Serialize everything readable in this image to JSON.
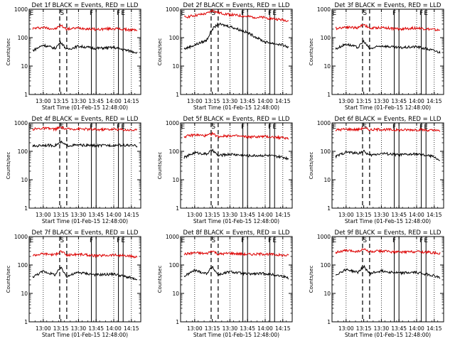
{
  "colors": {
    "events": "#000000",
    "lld": "#dd0000",
    "axes": "#000000"
  },
  "chart_data": [
    {
      "type": "line",
      "title": "Det 1f BLACK = Events, RED = LLD",
      "xlabel": "Start Time (01-Feb-15 12:48:00)",
      "ylabel": "Counts/sec",
      "yscale": "log",
      "ylim": [
        1,
        1000
      ],
      "xlim": [
        "12:48",
        "14:23"
      ],
      "x_ticks": [
        "13:00",
        "13:15",
        "13:30",
        "13:45",
        "14:00",
        "14:15"
      ],
      "y_ticks": [
        "1",
        "10",
        "100",
        "1000"
      ],
      "grid": "dotted vertical at 13:00, 13:30, 14:00, 14:15",
      "dashed_markers": [
        "13:14",
        "13:20"
      ],
      "solid_markers": [
        "13:41",
        "13:45",
        "14:04",
        "14:08"
      ],
      "annotations": [
        {
          "text": "E",
          "x": "12:50"
        },
        {
          "text": "S",
          "x": "13:16"
        },
        {
          "text": "F",
          "x": "13:41"
        },
        {
          "text": "F",
          "x": "14:04"
        },
        {
          "text": "E",
          "x": "14:08"
        }
      ],
      "series": [
        {
          "name": "LLD",
          "color": "red",
          "x": [
            "12:51",
            "13:00",
            "13:10",
            "13:15",
            "13:20",
            "13:30",
            "13:45",
            "14:00",
            "14:15",
            "14:20"
          ],
          "values": [
            210,
            230,
            200,
            270,
            200,
            220,
            195,
            210,
            185,
            190
          ]
        },
        {
          "name": "Events",
          "color": "black",
          "x": [
            "12:51",
            "13:00",
            "13:10",
            "13:15",
            "13:20",
            "13:30",
            "13:45",
            "14:00",
            "14:15",
            "14:20"
          ],
          "values": [
            35,
            55,
            42,
            70,
            38,
            50,
            42,
            45,
            33,
            30
          ]
        }
      ]
    },
    {
      "type": "line",
      "title": "Det 2f BLACK = Events, RED = LLD",
      "xlabel": "Start Time (01-Feb-15 12:48:00)",
      "ylabel": "Counts/sec",
      "yscale": "log",
      "ylim": [
        1,
        1000
      ],
      "xlim": [
        "12:48",
        "14:23"
      ],
      "x_ticks": [
        "13:00",
        "13:15",
        "13:30",
        "13:45",
        "14:00",
        "14:15"
      ],
      "y_ticks": [
        "1",
        "10",
        "100",
        "1000"
      ],
      "grid": "dotted vertical at 13:00, 13:30, 14:00, 14:15",
      "dashed_markers": [
        "13:14",
        "13:20"
      ],
      "solid_markers": [
        "13:41",
        "13:45",
        "14:04",
        "14:08"
      ],
      "annotations": [
        {
          "text": "E",
          "x": "12:50"
        },
        {
          "text": "S",
          "x": "13:16"
        },
        {
          "text": "F",
          "x": "13:41"
        },
        {
          "text": "F",
          "x": "14:04"
        },
        {
          "text": "E",
          "x": "14:08"
        }
      ],
      "series": [
        {
          "name": "LLD",
          "color": "red",
          "x": [
            "12:51",
            "13:00",
            "13:10",
            "13:15",
            "13:20",
            "13:30",
            "13:45",
            "14:00",
            "14:15",
            "14:20"
          ],
          "values": [
            520,
            600,
            700,
            900,
            750,
            650,
            550,
            500,
            420,
            400
          ]
        },
        {
          "name": "Events",
          "color": "black",
          "x": [
            "12:51",
            "13:00",
            "13:10",
            "13:15",
            "13:20",
            "13:30",
            "13:45",
            "14:00",
            "14:15",
            "14:20"
          ],
          "values": [
            40,
            55,
            80,
            200,
            300,
            250,
            150,
            70,
            55,
            45
          ]
        }
      ]
    },
    {
      "type": "line",
      "title": "Det 3f BLACK = Events, RED = LLD",
      "xlabel": "Start Time (01-Feb-15 12:48:00)",
      "ylabel": "Counts/sec",
      "yscale": "log",
      "ylim": [
        1,
        1000
      ],
      "xlim": [
        "12:48",
        "14:23"
      ],
      "x_ticks": [
        "13:00",
        "13:15",
        "13:30",
        "13:45",
        "14:00",
        "14:15"
      ],
      "y_ticks": [
        "1",
        "10",
        "100",
        "1000"
      ],
      "grid": "dotted vertical at 13:00, 13:30, 14:00, 14:15",
      "dashed_markers": [
        "13:14",
        "13:20"
      ],
      "solid_markers": [
        "13:41",
        "13:45",
        "14:04",
        "14:08"
      ],
      "annotations": [
        {
          "text": "E",
          "x": "12:50"
        },
        {
          "text": "S",
          "x": "13:16"
        },
        {
          "text": "F",
          "x": "13:41"
        },
        {
          "text": "F",
          "x": "14:04"
        },
        {
          "text": "E",
          "x": "14:08"
        }
      ],
      "series": [
        {
          "name": "LLD",
          "color": "red",
          "x": [
            "12:51",
            "13:00",
            "13:10",
            "13:15",
            "13:20",
            "13:30",
            "13:45",
            "14:00",
            "14:15",
            "14:20"
          ],
          "values": [
            210,
            240,
            220,
            300,
            210,
            230,
            200,
            220,
            190,
            180
          ]
        },
        {
          "name": "Events",
          "color": "black",
          "x": [
            "12:51",
            "13:00",
            "13:10",
            "13:15",
            "13:20",
            "13:30",
            "13:45",
            "14:00",
            "14:15",
            "14:20"
          ],
          "values": [
            40,
            60,
            45,
            75,
            40,
            52,
            44,
            48,
            35,
            30
          ]
        }
      ]
    },
    {
      "type": "line",
      "title": "Det 4f BLACK = Events, RED = LLD",
      "xlabel": "Start Time (01-Feb-15 12:48:00)",
      "ylabel": "Counts/sec",
      "yscale": "log",
      "ylim": [
        1,
        1000
      ],
      "xlim": [
        "12:48",
        "14:23"
      ],
      "x_ticks": [
        "13:00",
        "13:15",
        "13:30",
        "13:45",
        "14:00",
        "14:15"
      ],
      "y_ticks": [
        "1",
        "10",
        "100",
        "1000"
      ],
      "grid": "dotted vertical at 13:00, 13:30, 14:00, 14:15",
      "dashed_markers": [
        "13:14",
        "13:20"
      ],
      "solid_markers": [
        "13:41",
        "13:45",
        "14:04",
        "14:08"
      ],
      "annotations": [
        {
          "text": "E",
          "x": "12:50"
        },
        {
          "text": "S",
          "x": "13:16"
        },
        {
          "text": "F",
          "x": "13:41"
        },
        {
          "text": "F",
          "x": "14:04"
        },
        {
          "text": "E",
          "x": "14:08"
        }
      ],
      "series": [
        {
          "name": "LLD",
          "color": "red",
          "x": [
            "12:51",
            "13:00",
            "13:10",
            "13:15",
            "13:20",
            "13:30",
            "13:45",
            "14:00",
            "14:15",
            "14:20"
          ],
          "values": [
            600,
            650,
            600,
            700,
            600,
            620,
            580,
            600,
            560,
            550
          ]
        },
        {
          "name": "Events",
          "color": "black",
          "x": [
            "12:51",
            "13:00",
            "13:10",
            "13:15",
            "13:20",
            "13:30",
            "13:45",
            "14:00",
            "14:15",
            "14:20"
          ],
          "values": [
            150,
            165,
            160,
            210,
            160,
            165,
            158,
            165,
            160,
            155
          ]
        }
      ]
    },
    {
      "type": "line",
      "title": "Det 5f BLACK = Events, RED = LLD",
      "xlabel": "Start Time (01-Feb-15 12:48:00)",
      "ylabel": "Counts/sec",
      "yscale": "log",
      "ylim": [
        1,
        1000
      ],
      "xlim": [
        "12:48",
        "14:23"
      ],
      "x_ticks": [
        "13:00",
        "13:15",
        "13:30",
        "13:45",
        "14:00",
        "14:15"
      ],
      "y_ticks": [
        "1",
        "10",
        "100",
        "1000"
      ],
      "grid": "dotted vertical at 13:00, 13:30, 14:00, 14:15",
      "dashed_markers": [
        "13:14",
        "13:20"
      ],
      "solid_markers": [
        "13:41",
        "13:45",
        "14:04",
        "14:08"
      ],
      "annotations": [
        {
          "text": "E",
          "x": "12:50"
        },
        {
          "text": "S",
          "x": "13:16"
        },
        {
          "text": "F",
          "x": "13:41"
        },
        {
          "text": "F",
          "x": "14:04"
        },
        {
          "text": "E",
          "x": "14:08"
        }
      ],
      "series": [
        {
          "name": "LLD",
          "color": "red",
          "x": [
            "12:51",
            "13:00",
            "13:10",
            "13:15",
            "13:20",
            "13:30",
            "13:45",
            "14:00",
            "14:15",
            "14:20"
          ],
          "values": [
            330,
            380,
            350,
            420,
            330,
            360,
            320,
            330,
            300,
            290
          ]
        },
        {
          "name": "Events",
          "color": "black",
          "x": [
            "12:51",
            "13:00",
            "13:10",
            "13:15",
            "13:20",
            "13:30",
            "13:45",
            "14:00",
            "14:15",
            "14:20"
          ],
          "values": [
            60,
            90,
            80,
            110,
            70,
            80,
            70,
            72,
            62,
            55
          ]
        }
      ]
    },
    {
      "type": "line",
      "title": "Det 6f BLACK = Events, RED = LLD",
      "xlabel": "Start Time (01-Feb-15 12:48:00)",
      "ylabel": "Counts/sec",
      "yscale": "log",
      "ylim": [
        1,
        1000
      ],
      "xlim": [
        "12:48",
        "14:23"
      ],
      "x_ticks": [
        "13:00",
        "13:15",
        "13:30",
        "13:45",
        "14:00",
        "14:15"
      ],
      "y_ticks": [
        "1",
        "10",
        "100",
        "1000"
      ],
      "grid": "dotted vertical at 13:00, 13:30, 14:00, 14:15",
      "dashed_markers": [
        "13:14",
        "13:20"
      ],
      "solid_markers": [
        "13:41",
        "13:45",
        "14:04",
        "14:08"
      ],
      "annotations": [
        {
          "text": "E",
          "x": "12:50"
        },
        {
          "text": "S",
          "x": "13:16"
        },
        {
          "text": "F",
          "x": "13:41"
        },
        {
          "text": "F",
          "x": "14:04"
        },
        {
          "text": "E",
          "x": "14:08"
        }
      ],
      "series": [
        {
          "name": "LLD",
          "color": "red",
          "x": [
            "12:51",
            "13:00",
            "13:10",
            "13:15",
            "13:20",
            "13:30",
            "13:45",
            "14:00",
            "14:15",
            "14:20"
          ],
          "values": [
            560,
            600,
            580,
            660,
            570,
            590,
            560,
            580,
            540,
            520
          ]
        },
        {
          "name": "Events",
          "color": "black",
          "x": [
            "12:51",
            "13:00",
            "13:10",
            "13:15",
            "13:20",
            "13:30",
            "13:45",
            "14:00",
            "14:15",
            "14:20"
          ],
          "values": [
            65,
            95,
            85,
            100,
            72,
            85,
            75,
            80,
            65,
            45
          ]
        }
      ]
    },
    {
      "type": "line",
      "title": "Det 7f BLACK = Events, RED = LLD",
      "xlabel": "Start Time (01-Feb-15 12:48:00)",
      "ylabel": "Counts/sec",
      "yscale": "log",
      "ylim": [
        1,
        1000
      ],
      "xlim": [
        "12:48",
        "14:23"
      ],
      "x_ticks": [
        "13:00",
        "13:15",
        "13:30",
        "13:45",
        "14:00",
        "14:15"
      ],
      "y_ticks": [
        "1",
        "10",
        "100",
        "1000"
      ],
      "grid": "dotted vertical at 13:00, 13:30, 14:00, 14:15",
      "dashed_markers": [
        "13:14",
        "13:20"
      ],
      "solid_markers": [
        "13:41",
        "13:45",
        "14:04",
        "14:08"
      ],
      "annotations": [
        {
          "text": "E",
          "x": "12:50"
        },
        {
          "text": "S",
          "x": "13:16"
        },
        {
          "text": "F",
          "x": "13:41"
        },
        {
          "text": "F",
          "x": "14:04"
        },
        {
          "text": "E",
          "x": "14:08"
        }
      ],
      "series": [
        {
          "name": "LLD",
          "color": "red",
          "x": [
            "12:51",
            "13:00",
            "13:10",
            "13:15",
            "13:20",
            "13:30",
            "13:45",
            "14:00",
            "14:15",
            "14:20"
          ],
          "values": [
            220,
            250,
            230,
            310,
            220,
            240,
            210,
            225,
            200,
            190
          ]
        },
        {
          "name": "Events",
          "color": "black",
          "x": [
            "12:51",
            "13:00",
            "13:10",
            "13:15",
            "13:20",
            "13:30",
            "13:45",
            "14:00",
            "14:15",
            "14:20"
          ],
          "values": [
            38,
            60,
            45,
            80,
            40,
            55,
            45,
            48,
            35,
            28
          ]
        }
      ]
    },
    {
      "type": "line",
      "title": "Det 8f BLACK = Events, RED = LLD",
      "xlabel": "Start Time (01-Feb-15 12:48:00)",
      "ylabel": "Counts/sec",
      "yscale": "log",
      "ylim": [
        1,
        1000
      ],
      "xlim": [
        "12:48",
        "14:23"
      ],
      "x_ticks": [
        "13:00",
        "13:15",
        "13:30",
        "13:45",
        "14:00",
        "14:15"
      ],
      "y_ticks": [
        "1",
        "10",
        "100",
        "1000"
      ],
      "grid": "dotted vertical at 13:00, 13:30, 14:00, 14:15",
      "dashed_markers": [
        "13:14",
        "13:20"
      ],
      "solid_markers": [
        "13:41",
        "13:45",
        "14:04",
        "14:08"
      ],
      "annotations": [
        {
          "text": "E",
          "x": "12:50"
        },
        {
          "text": "S",
          "x": "13:16"
        },
        {
          "text": "F",
          "x": "13:41"
        },
        {
          "text": "F",
          "x": "14:04"
        },
        {
          "text": "E",
          "x": "14:08"
        }
      ],
      "series": [
        {
          "name": "LLD",
          "color": "red",
          "x": [
            "12:51",
            "13:00",
            "13:10",
            "13:15",
            "13:20",
            "13:30",
            "13:45",
            "14:00",
            "14:15",
            "14:20"
          ],
          "values": [
            240,
            270,
            250,
            320,
            240,
            260,
            235,
            245,
            220,
            215
          ]
        },
        {
          "name": "Events",
          "color": "black",
          "x": [
            "12:51",
            "13:00",
            "13:10",
            "13:15",
            "13:20",
            "13:30",
            "13:45",
            "14:00",
            "14:15",
            "14:20"
          ],
          "values": [
            40,
            65,
            50,
            85,
            45,
            58,
            48,
            50,
            40,
            35
          ]
        }
      ]
    },
    {
      "type": "line",
      "title": "Det 9f BLACK = Events, RED = LLD",
      "xlabel": "Start Time (01-Feb-15 12:48:00)",
      "ylabel": "Counts/sec",
      "yscale": "log",
      "ylim": [
        1,
        1000
      ],
      "xlim": [
        "12:48",
        "14:23"
      ],
      "x_ticks": [
        "13:00",
        "13:15",
        "13:30",
        "13:45",
        "14:00",
        "14:15"
      ],
      "y_ticks": [
        "1",
        "10",
        "100",
        "1000"
      ],
      "grid": "dotted vertical at 13:00, 13:30, 14:00, 14:15",
      "dashed_markers": [
        "13:14",
        "13:20"
      ],
      "solid_markers": [
        "13:41",
        "13:45",
        "14:04",
        "14:08"
      ],
      "annotations": [
        {
          "text": "E",
          "x": "12:50"
        },
        {
          "text": "S",
          "x": "13:16"
        },
        {
          "text": "F",
          "x": "13:41"
        },
        {
          "text": "F",
          "x": "14:04"
        },
        {
          "text": "E",
          "x": "14:08"
        }
      ],
      "series": [
        {
          "name": "LLD",
          "color": "red",
          "x": [
            "12:51",
            "13:00",
            "13:10",
            "13:15",
            "13:20",
            "13:30",
            "13:45",
            "14:00",
            "14:15",
            "14:20"
          ],
          "values": [
            280,
            320,
            300,
            360,
            290,
            310,
            280,
            300,
            270,
            260
          ]
        },
        {
          "name": "Events",
          "color": "black",
          "x": [
            "12:51",
            "13:00",
            "13:10",
            "13:15",
            "13:20",
            "13:30",
            "13:45",
            "14:00",
            "14:15",
            "14:20"
          ],
          "values": [
            45,
            70,
            55,
            90,
            50,
            62,
            52,
            55,
            42,
            35
          ]
        }
      ]
    }
  ]
}
